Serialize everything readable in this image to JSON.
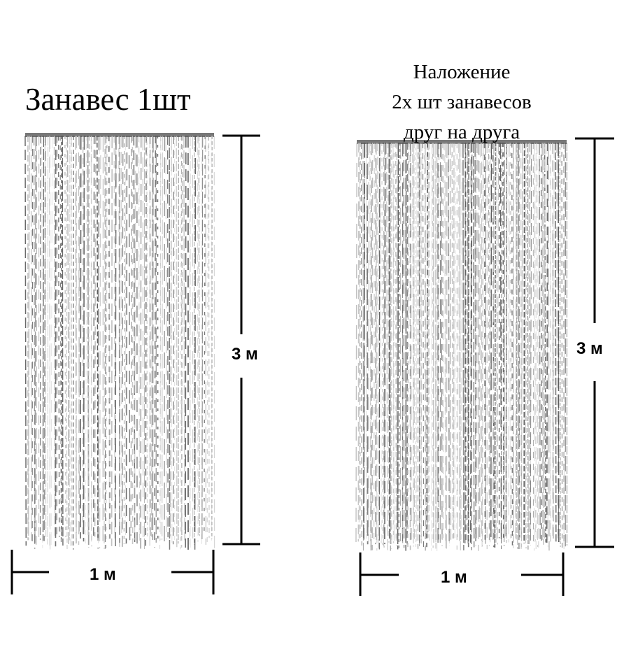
{
  "left_panel": {
    "title": "Занавес 1шт",
    "height_label": "3 м",
    "width_label": "1 м"
  },
  "right_panel": {
    "title_lines": [
      "Наложение",
      "2х шт занавесов",
      "друг на друга"
    ],
    "height_label": "3 м",
    "width_label": "1 м"
  },
  "colors": {
    "strand_dark": "#555555",
    "strand_light": "#bdbdbd",
    "dimension_line": "#000000"
  }
}
